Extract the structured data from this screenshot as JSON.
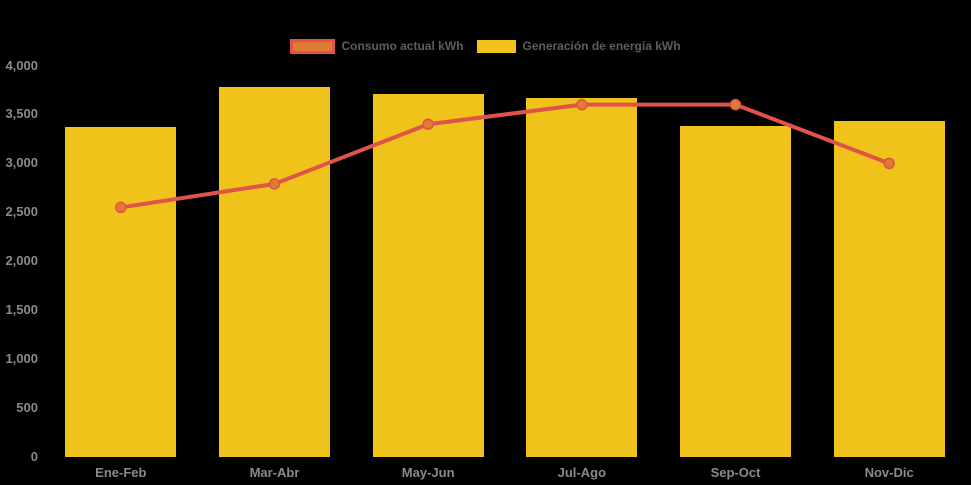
{
  "legend": {
    "items": [
      {
        "label": "Consumo actual kWh",
        "series": "line"
      },
      {
        "label": "Generación de energía kWh",
        "series": "bar"
      }
    ]
  },
  "colors": {
    "background": "#000000",
    "bar_fill": "#EFC319",
    "line_stroke": "#E0534A",
    "point_fill": "#DF7B33",
    "axis_text": "#8A8A8A",
    "legend_text": "#5E5E5E"
  },
  "chart_data": {
    "type": "bar",
    "title": "",
    "xlabel": "",
    "ylabel": "",
    "categories": [
      "Ene-Feb",
      "Mar-Abr",
      "May-Jun",
      "Jul-Ago",
      "Sep-Oct",
      "Nov-Dic"
    ],
    "series": [
      {
        "name": "Consumo actual kWh",
        "type": "line",
        "color": "#E0534A",
        "point_color": "#DF7B33",
        "values": [
          2550,
          2790,
          3400,
          3600,
          3600,
          3000
        ]
      },
      {
        "name": "Generación de energía kWh",
        "type": "bar",
        "color": "#EFC319",
        "values": [
          3370,
          3780,
          3710,
          3670,
          3380,
          3430
        ]
      }
    ],
    "ylim": [
      0,
      4000
    ],
    "ytick_step": 500,
    "ytick_labels": [
      "0",
      "500",
      "1,000",
      "1,500",
      "2,000",
      "2,500",
      "3,000",
      "3,500",
      "4,000"
    ],
    "grid": false,
    "legend_position": "top"
  }
}
